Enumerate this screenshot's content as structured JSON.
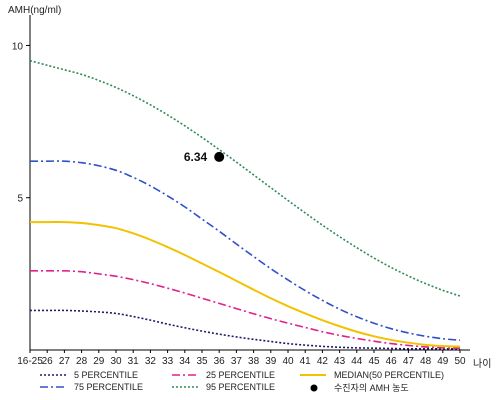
{
  "chart_data": {
    "type": "line",
    "ylabel": "AMH(ng/ml)",
    "xlabel": "나이",
    "ylim": [
      0,
      11
    ],
    "yticks": [
      5,
      10
    ],
    "categories": [
      "16-25",
      "26",
      "27",
      "28",
      "29",
      "30",
      "31",
      "32",
      "33",
      "34",
      "35",
      "36",
      "37",
      "38",
      "39",
      "40",
      "41",
      "42",
      "43",
      "44",
      "45",
      "46",
      "47",
      "48",
      "49",
      "50"
    ],
    "grid": false,
    "legend_position": "bottom",
    "series": [
      {
        "name": "5 PERCENTILE",
        "color": "#1a1a6e",
        "dash": "2,2",
        "values": [
          1.3,
          1.3,
          1.3,
          1.28,
          1.25,
          1.2,
          1.1,
          0.98,
          0.85,
          0.73,
          0.62,
          0.52,
          0.43,
          0.35,
          0.28,
          0.21,
          0.16,
          0.12,
          0.09,
          0.07,
          0.06,
          0.05,
          0.04,
          0.04,
          0.04,
          0.04
        ]
      },
      {
        "name": "25 PERCENTILE",
        "color": "#e0208c",
        "dash": "8,3,2,3",
        "values": [
          2.6,
          2.6,
          2.6,
          2.57,
          2.5,
          2.42,
          2.31,
          2.18,
          2.03,
          1.87,
          1.7,
          1.53,
          1.36,
          1.19,
          1.03,
          0.88,
          0.74,
          0.6,
          0.48,
          0.38,
          0.29,
          0.21,
          0.15,
          0.1,
          0.07,
          0.06
        ]
      },
      {
        "name": "MEDIAN(50 PERCENTILE)",
        "color": "#f2c200",
        "dash": "",
        "values": [
          4.2,
          4.2,
          4.2,
          4.17,
          4.1,
          4.0,
          3.83,
          3.62,
          3.38,
          3.12,
          2.84,
          2.56,
          2.27,
          1.98,
          1.7,
          1.44,
          1.2,
          0.98,
          0.78,
          0.6,
          0.45,
          0.33,
          0.24,
          0.17,
          0.13,
          0.11
        ]
      },
      {
        "name": "75 PERCENTILE",
        "color": "#3050c8",
        "dash": "8,3,2,3",
        "values": [
          6.2,
          6.2,
          6.2,
          6.15,
          6.05,
          5.9,
          5.67,
          5.39,
          5.06,
          4.7,
          4.3,
          3.9,
          3.48,
          3.07,
          2.67,
          2.3,
          1.95,
          1.63,
          1.34,
          1.09,
          0.88,
          0.7,
          0.56,
          0.45,
          0.37,
          0.32
        ]
      },
      {
        "name": "95 PERCENTILE",
        "color": "#2e8b57",
        "dash": "2,2",
        "values": [
          9.5,
          9.35,
          9.2,
          9.05,
          8.85,
          8.62,
          8.35,
          8.05,
          7.72,
          7.36,
          6.98,
          6.58,
          6.17,
          5.75,
          5.33,
          4.91,
          4.5,
          4.1,
          3.72,
          3.36,
          3.02,
          2.71,
          2.43,
          2.18,
          1.96,
          1.77
        ]
      }
    ],
    "marker": {
      "name": "수진자의 AMH 농도",
      "x": "36",
      "y": 6.34,
      "label": "6.34",
      "color": "#000000"
    }
  }
}
